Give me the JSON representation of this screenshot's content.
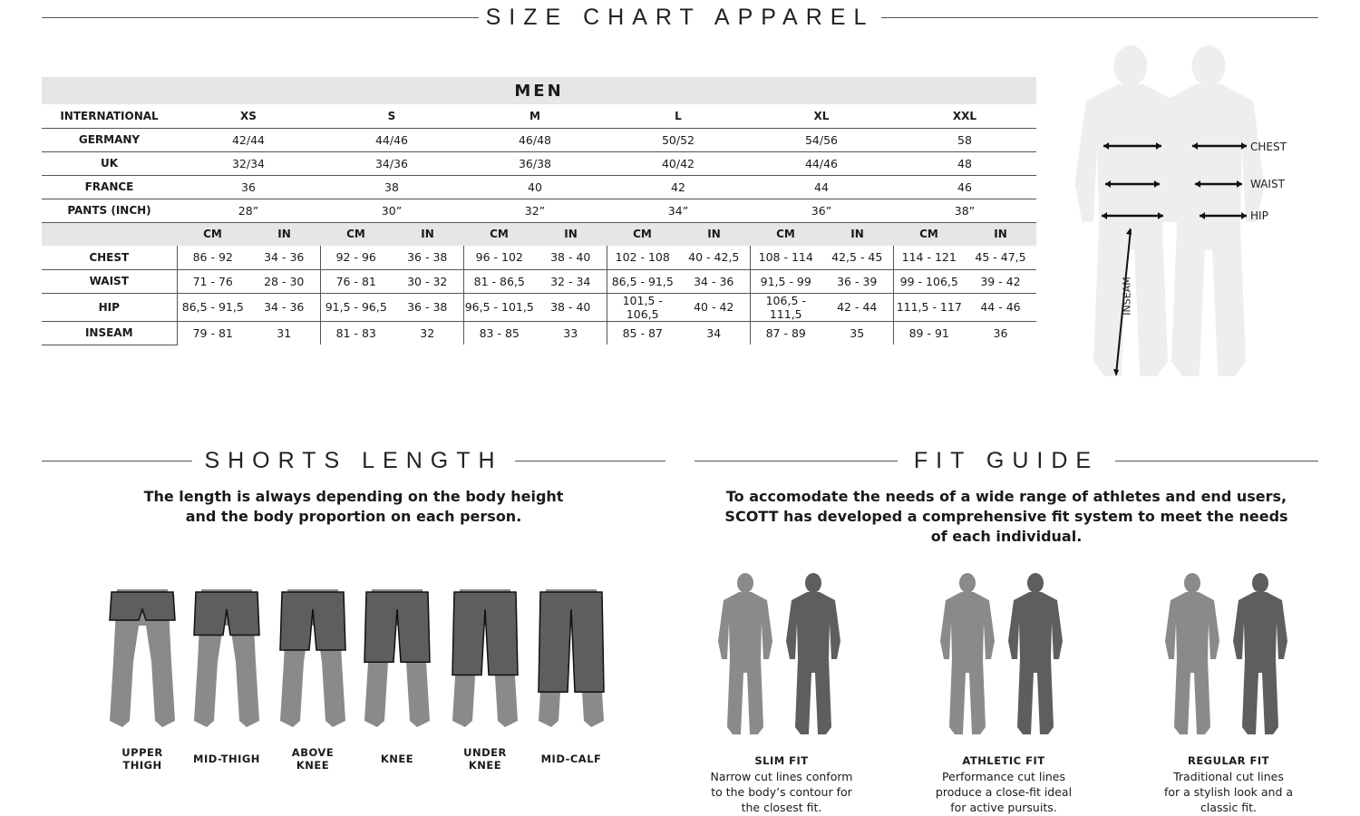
{
  "title": "SIZE CHART APPAREL",
  "table": {
    "heading": "MEN",
    "international_label": "INTERNATIONAL",
    "sizes": [
      "XS",
      "S",
      "M",
      "L",
      "XL",
      "XXL"
    ],
    "conversion_rows": [
      {
        "label": "GERMANY",
        "values": [
          "42/44",
          "44/46",
          "46/48",
          "50/52",
          "54/56",
          "58"
        ]
      },
      {
        "label": "UK",
        "values": [
          "32/34",
          "34/36",
          "36/38",
          "40/42",
          "44/46",
          "48"
        ]
      },
      {
        "label": "FRANCE",
        "values": [
          "36",
          "38",
          "40",
          "42",
          "44",
          "46"
        ]
      },
      {
        "label": "PANTS (INCH)",
        "values": [
          "28”",
          "30”",
          "32”",
          "34”",
          "36”",
          "38”"
        ]
      }
    ],
    "units": [
      "CM",
      "IN"
    ],
    "measurement_rows": [
      {
        "label": "CHEST",
        "values": [
          "86 - 92",
          "34 - 36",
          "92 - 96",
          "36 - 38",
          "96 - 102",
          "38 - 40",
          "102 - 108",
          "40 - 42,5",
          "108 - 114",
          "42,5 - 45",
          "114 - 121",
          "45 - 47,5"
        ]
      },
      {
        "label": "WAIST",
        "values": [
          "71 - 76",
          "28 - 30",
          "76 - 81",
          "30 - 32",
          "81 - 86,5",
          "32 - 34",
          "86,5 - 91,5",
          "34 - 36",
          "91,5 - 99",
          "36 - 39",
          "99 - 106,5",
          "39 - 42"
        ]
      },
      {
        "label": "HIP",
        "values": [
          "86,5 - 91,5",
          "34 - 36",
          "91,5 - 96,5",
          "36 - 38",
          "96,5 - 101,5",
          "38 - 40",
          "101,5 - 106,5",
          "40 - 42",
          "106,5 - 111,5",
          "42 - 44",
          "111,5 - 117",
          "44 - 46"
        ]
      },
      {
        "label": "INSEAM",
        "values": [
          "79 - 81",
          "31",
          "81 - 83",
          "32",
          "83 - 85",
          "33",
          "85 - 87",
          "34",
          "87 - 89",
          "35",
          "89 - 91",
          "36"
        ]
      }
    ]
  },
  "body_diagram": {
    "chest": "CHEST",
    "waist": "WAIST",
    "hip": "HIP",
    "inseam": "INSEAM"
  },
  "shorts": {
    "title": "SHORTS LENGTH",
    "intro": [
      "The length is always depending on the body height",
      "and the body proportion on each person."
    ],
    "items": [
      {
        "label": "UPPER THIGH",
        "length": 0.2
      },
      {
        "label": "MID-THIGH",
        "length": 0.35
      },
      {
        "label": "ABOVE KNEE",
        "length": 0.5
      },
      {
        "label": "KNEE",
        "length": 0.62
      },
      {
        "label": "UNDER KNEE",
        "length": 0.75
      },
      {
        "label": "MID-CALF",
        "length": 0.92
      }
    ]
  },
  "fit_guide": {
    "title": "FIT GUIDE",
    "intro": [
      "To accomodate the needs of a wide range of athletes and end users,",
      "SCOTT has developed a comprehensive fit system to meet the needs",
      "of each individual."
    ],
    "items": [
      {
        "name": "SLIM FIT",
        "desc": [
          "Narrow cut lines conform",
          "to the body’s contour for",
          "the closest fit."
        ]
      },
      {
        "name": "ATHLETIC FIT",
        "desc": [
          "Performance cut lines",
          "produce a close-fit ideal",
          "for active pursuits."
        ]
      },
      {
        "name": "REGULAR FIT",
        "desc": [
          "Traditional cut lines",
          "for a stylish look and a",
          "classic fit."
        ]
      }
    ]
  },
  "colors": {
    "header_bg": "#e6e6e6",
    "figure": "#8a8a8a",
    "garment": "#5e5e5e"
  }
}
